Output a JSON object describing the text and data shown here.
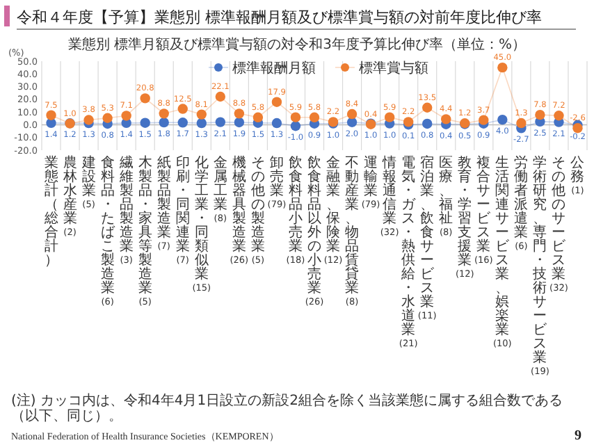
{
  "chart_data": {
    "type": "line",
    "title": "令和４年度【予算】業態別 標準報酬月額及び標準賞与額の対前年度比伸び率",
    "subtitle": "業態別 標準月額及び標準賞与額の対令和3年度予算比伸び率（単位：%）",
    "ylabel": "(%)",
    "categories": [
      "業態計（総合計）",
      "農林水産業(2)",
      "建設業(5)",
      "食料品・たばこ製造業(6)",
      "繊維製品製造業(3)",
      "木製品・家具等製造業(5)",
      "紙製品製造業(7)",
      "印刷・同関連業(7)",
      "化学工業・同類似業(15)",
      "金属工業(8)",
      "機械器具製造業(26)",
      "その他の製造業(5)",
      "卸売業(79)",
      "飲食料品小売業(18)",
      "飲食料品以外の小売業(26)",
      "金融業、保険業(12)",
      "不動産業、物品賃貸業(8)",
      "運輸業(79)",
      "情報通信業(32)",
      "電気・ガス・熱供給・水道業(21)",
      "宿泊業、飲食サービス業(11)",
      "医療、福祉(8)",
      "教育・学習支援業(12)",
      "複合サービス業(16)",
      "生活関連サービス業、娯楽業(10)",
      "労働者派遣業(6)",
      "学術研究、専門・技術サービス業(19)",
      "その他のサービス業(32)",
      "公務(1)"
    ],
    "series": [
      {
        "name": "標準報酬月額",
        "color": "#4472c4",
        "values": [
          1.4,
          1.2,
          1.3,
          0.8,
          1.4,
          1.5,
          1.8,
          1.7,
          1.3,
          2.1,
          1.9,
          1.5,
          1.3,
          -1.0,
          0.9,
          1.0,
          2.0,
          1.0,
          1.0,
          0.1,
          0.8,
          0.4,
          0.5,
          0.9,
          4.0,
          -2.7,
          2.5,
          2.1,
          -0.2
        ],
        "value_labels": [
          "1.4",
          "1.2",
          "1.3",
          "0.8",
          "1.4",
          "1.5",
          "1.8",
          "1.7",
          "1.3",
          "2.1",
          "1.9",
          "1.5",
          "1.3",
          "-1.0",
          "0.9",
          "1.0",
          "2.0",
          "1.0",
          "1.0",
          "0.1",
          "0.8",
          "0.4",
          "0.5",
          "0.9",
          "4.0",
          "-2.7",
          "2.5",
          "2.1",
          "-0.2"
        ]
      },
      {
        "name": "標準賞与額",
        "color": "#ed7d31",
        "values": [
          7.5,
          1.0,
          3.8,
          5.3,
          7.1,
          20.8,
          8.8,
          12.5,
          8.1,
          22.1,
          8.8,
          5.8,
          17.9,
          5.9,
          5.8,
          2.2,
          8.4,
          0.4,
          5.9,
          2.2,
          13.5,
          4.4,
          1.2,
          3.7,
          45.0,
          1.3,
          7.8,
          7.2,
          -2.6
        ],
        "value_labels": [
          "7.5",
          "1.0",
          "3.8",
          "5.3",
          "7.1",
          "20.8",
          "8.8",
          "12.5",
          "8.1",
          "22.1",
          "8.8",
          "5.8",
          "17.9",
          "5.9",
          "5.8",
          "2.2",
          "8.4",
          "0.4",
          "5.9",
          "2.2",
          "13.5",
          "4.4",
          "1.2",
          "3.7",
          "45.0",
          "1.3",
          "7.8",
          "7.2",
          "-2.6"
        ]
      }
    ],
    "ylim": [
      -20,
      50
    ],
    "yticks": [
      {
        "value": 50,
        "label": "50.0"
      },
      {
        "value": 40,
        "label": "40.0"
      },
      {
        "value": 30,
        "label": "30.0"
      },
      {
        "value": 20,
        "label": "20.0"
      },
      {
        "value": 10,
        "label": "10.0"
      },
      {
        "value": 0,
        "label": "0.0"
      },
      {
        "value": -10,
        "label": "-10.0"
      },
      {
        "value": -20,
        "label": "-20.0"
      }
    ],
    "grid": "x",
    "legend": "top",
    "marker": "circle",
    "annotations": [
      "(注) カッコ内は、令和4年4月1日設立の新設2組合を除く当該業態に属する組合数である（以下、同じ）。",
      "National Federation of Health Insurance Societies（KEMPOREN）",
      "9"
    ]
  }
}
